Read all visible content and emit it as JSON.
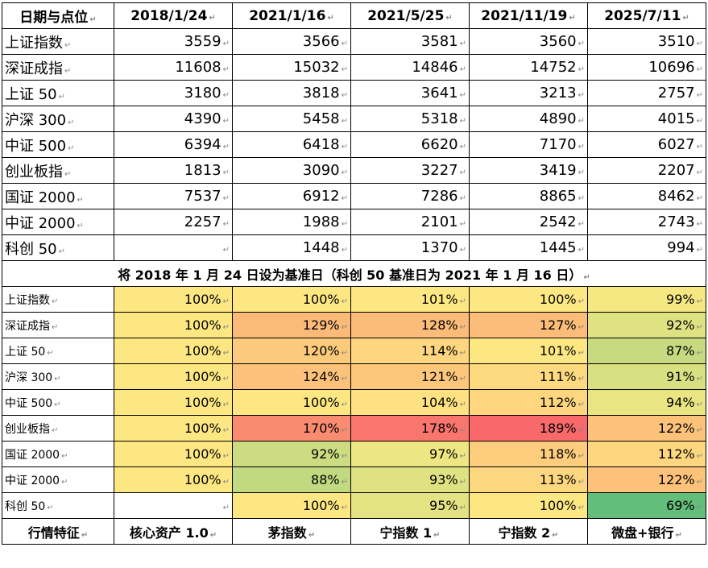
{
  "header": {
    "first": "日期与点位",
    "dates": [
      "2018/1/24",
      "2021/1/16",
      "2021/5/25",
      "2021/11/19",
      "2025/7/11"
    ]
  },
  "points": [
    {
      "name": "上证指数",
      "values": [
        "3559",
        "3566",
        "3581",
        "3560",
        "3510"
      ]
    },
    {
      "name": "深证成指",
      "values": [
        "11608",
        "15032",
        "14846",
        "14752",
        "10696"
      ]
    },
    {
      "name": "上证 50",
      "values": [
        "3180",
        "3818",
        "3641",
        "3213",
        "2757"
      ]
    },
    {
      "name": "沪深 300",
      "values": [
        "4390",
        "5458",
        "5318",
        "4890",
        "4015"
      ]
    },
    {
      "name": "中证 500",
      "values": [
        "6394",
        "6418",
        "6620",
        "7170",
        "6027"
      ]
    },
    {
      "name": "创业板指",
      "values": [
        "1813",
        "3090",
        "3227",
        "3419",
        "2207"
      ]
    },
    {
      "name": "国证 2000",
      "values": [
        "7537",
        "6912",
        "7286",
        "8865",
        "8462"
      ]
    },
    {
      "name": "中证 2000",
      "values": [
        "2257",
        "1988",
        "2101",
        "2542",
        "2743"
      ]
    },
    {
      "name": "科创 50",
      "values": [
        "",
        "1448",
        "1370",
        "1445",
        "994"
      ]
    }
  ],
  "baseline_title": "将 2018 年 1 月 24 日设为基准日（科创 50 基准日为 2021 年 1 月 16 日）",
  "percent": [
    {
      "name": "上证指数",
      "values": [
        "100%",
        "100%",
        "101%",
        "100%",
        "99%"
      ]
    },
    {
      "name": "深证成指",
      "values": [
        "100%",
        "129%",
        "128%",
        "127%",
        "92%"
      ]
    },
    {
      "name": "上证 50",
      "values": [
        "100%",
        "120%",
        "114%",
        "101%",
        "87%"
      ]
    },
    {
      "name": "沪深 300",
      "values": [
        "100%",
        "124%",
        "121%",
        "111%",
        "91%"
      ]
    },
    {
      "name": "中证 500",
      "values": [
        "100%",
        "100%",
        "104%",
        "112%",
        "94%"
      ]
    },
    {
      "name": "创业板指",
      "values": [
        "100%",
        "170%",
        "178%",
        "189%",
        "122%"
      ]
    },
    {
      "name": "国证 2000",
      "values": [
        "100%",
        "92%",
        "97%",
        "118%",
        "112%"
      ]
    },
    {
      "name": "中证 2000",
      "values": [
        "100%",
        "88%",
        "93%",
        "113%",
        "122%"
      ]
    },
    {
      "name": "科创 50",
      "values": [
        "",
        "100%",
        "95%",
        "100%",
        "69%"
      ]
    }
  ],
  "percent_colors": [
    [
      "#fde783",
      "#fde783",
      "#fde783",
      "#fde783",
      "#f5e883"
    ],
    [
      "#fde783",
      "#fbba78",
      "#fbbb79",
      "#fbbd79",
      "#dfe283"
    ],
    [
      "#fde783",
      "#fcca7c",
      "#fdd67f",
      "#fde783",
      "#c7da80"
    ],
    [
      "#fde783",
      "#fcc27a",
      "#fcc77b",
      "#fdda80",
      "#d9e082"
    ],
    [
      "#fde783",
      "#fde783",
      "#fde182",
      "#fdd67f",
      "#e9e583"
    ],
    [
      "#fde783",
      "#f98c70",
      "#f8766d",
      "#f8696b",
      "#fcc27a"
    ],
    [
      "#fde783",
      "#cddc81",
      "#eee683",
      "#fdcd7d",
      "#fdd67f"
    ],
    [
      "#fde783",
      "#c1d980",
      "#dee282",
      "#fdd77f",
      "#fcc27a"
    ],
    [
      "#ffffff",
      "#fde783",
      "#e4e383",
      "#fde783",
      "#63be7b"
    ]
  ],
  "footer": [
    "行情特征",
    "核心资产 1.0",
    "茅指数",
    "宁指数 1",
    "宁指数 2",
    "微盘+银行"
  ],
  "mark_glyph": "↵"
}
